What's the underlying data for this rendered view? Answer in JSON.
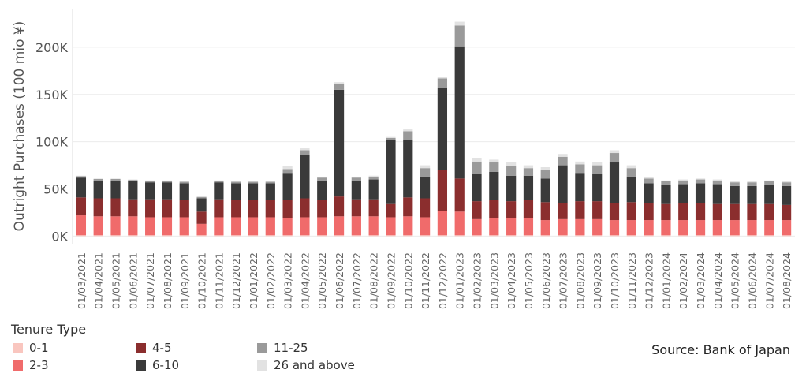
{
  "chart_data": {
    "type": "bar",
    "stacked": true,
    "ylabel": "Outright Purchases (100 mio ¥)",
    "ylim": [
      -8000,
      240000
    ],
    "yticks": [
      0,
      50000,
      100000,
      150000,
      200000
    ],
    "ytick_labels": [
      "0K",
      "50K",
      "100K",
      "150K",
      "200K"
    ],
    "grid": true,
    "categories": [
      "01/03/2021",
      "01/04/2021",
      "01/05/2021",
      "01/06/2021",
      "01/07/2021",
      "01/08/2021",
      "01/09/2021",
      "01/10/2021",
      "01/11/2021",
      "01/12/2021",
      "01/01/2022",
      "01/02/2022",
      "01/03/2022",
      "01/04/2022",
      "01/05/2022",
      "01/06/2022",
      "01/07/2022",
      "01/08/2022",
      "01/09/2022",
      "01/10/2022",
      "01/11/2022",
      "01/12/2022",
      "01/01/2023",
      "01/02/2023",
      "01/03/2023",
      "01/04/2023",
      "01/05/2023",
      "01/06/2023",
      "01/07/2023",
      "01/08/2023",
      "01/09/2023",
      "01/10/2023",
      "01/11/2023",
      "01/12/2023",
      "01/01/2024",
      "01/02/2024",
      "01/03/2024",
      "01/04/2024",
      "01/05/2024",
      "01/06/2024",
      "01/07/2024",
      "01/08/2024"
    ],
    "series": [
      {
        "name": "0-1",
        "color": "#f9c6bf",
        "values": [
          1000,
          1000,
          1000,
          1000,
          1000,
          1000,
          1000,
          1000,
          1000,
          1000,
          1000,
          1000,
          1000,
          1000,
          1000,
          1000,
          1000,
          1000,
          1000,
          1000,
          1000,
          1000,
          1000,
          1000,
          1000,
          1000,
          1000,
          1000,
          1000,
          1000,
          1000,
          1000,
          1000,
          1000,
          1000,
          1000,
          1000,
          1000,
          1000,
          1000,
          1000,
          1000
        ]
      },
      {
        "name": "2-3",
        "color": "#f06b6b",
        "values": [
          21000,
          20000,
          20000,
          20000,
          19000,
          19000,
          19000,
          12000,
          19000,
          19000,
          19000,
          19000,
          18000,
          19000,
          19000,
          20000,
          20000,
          20000,
          19000,
          20000,
          19000,
          26000,
          25000,
          17000,
          18000,
          18000,
          18000,
          16000,
          17000,
          17000,
          17000,
          16000,
          16000,
          16000,
          16000,
          16000,
          16000,
          16000,
          16000,
          16000,
          16000,
          16000
        ]
      },
      {
        "name": "4-5",
        "color": "#8b2e2e",
        "values": [
          19000,
          19000,
          19000,
          18000,
          19000,
          19000,
          18000,
          13000,
          19000,
          18000,
          18000,
          18000,
          19000,
          20000,
          18000,
          21000,
          18000,
          18000,
          14000,
          20000,
          20000,
          43000,
          35000,
          19000,
          19000,
          18000,
          19000,
          19000,
          17000,
          19000,
          19000,
          18000,
          19000,
          18000,
          17000,
          18000,
          18000,
          17000,
          17000,
          17000,
          17000,
          16000
        ]
      },
      {
        "name": "6-10",
        "color": "#3a3a3a",
        "values": [
          21000,
          19000,
          19000,
          19000,
          18000,
          18000,
          18000,
          14000,
          18000,
          18000,
          18000,
          18000,
          29000,
          46000,
          21000,
          113000,
          20000,
          21000,
          68000,
          61000,
          23000,
          87000,
          140000,
          29000,
          30000,
          27000,
          26000,
          25000,
          40000,
          30000,
          29000,
          43000,
          27000,
          21000,
          20000,
          20000,
          21000,
          21000,
          19000,
          19000,
          20000,
          20000
        ]
      },
      {
        "name": "11-25",
        "color": "#9a9a9a",
        "values": [
          1500,
          1500,
          1500,
          1500,
          1500,
          1500,
          1500,
          1500,
          1500,
          1500,
          1500,
          1500,
          4000,
          5000,
          3000,
          6000,
          3000,
          3000,
          2000,
          9000,
          9000,
          10000,
          22000,
          13000,
          10000,
          10000,
          8000,
          9000,
          9000,
          9000,
          9000,
          10000,
          9000,
          5000,
          4000,
          4000,
          4000,
          4000,
          4000,
          4000,
          4000,
          4000
        ]
      },
      {
        "name": "26 and above",
        "color": "#e2e2e2",
        "values": [
          500,
          500,
          500,
          500,
          500,
          500,
          500,
          500,
          500,
          500,
          500,
          500,
          3000,
          2000,
          1000,
          2000,
          1000,
          1000,
          1000,
          2000,
          3000,
          2000,
          4000,
          4000,
          3000,
          4000,
          3000,
          3000,
          3000,
          3000,
          3000,
          3000,
          3000,
          2000,
          1000,
          1000,
          1000,
          1000,
          1000,
          1000,
          1000,
          1000
        ]
      }
    ]
  },
  "legend": {
    "title": "Tenure Type",
    "items": [
      {
        "label": "0-1",
        "color": "#f9c6bf"
      },
      {
        "label": "2-3",
        "color": "#f06b6b"
      },
      {
        "label": "4-5",
        "color": "#8b2e2e"
      },
      {
        "label": "6-10",
        "color": "#3a3a3a"
      },
      {
        "label": "11-25",
        "color": "#9a9a9a"
      },
      {
        "label": "26 and above",
        "color": "#e2e2e2"
      }
    ]
  },
  "source": "Source: Bank of Japan"
}
